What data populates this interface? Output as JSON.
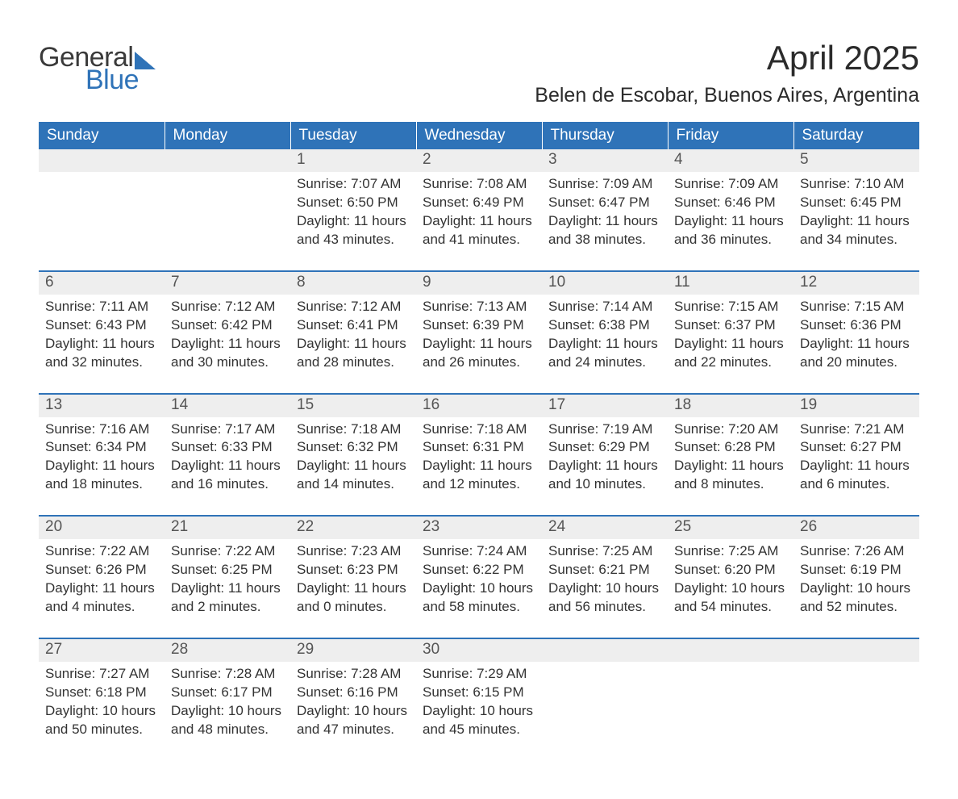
{
  "logo": {
    "word1": "General",
    "word2": "Blue",
    "word2_color": "#2f73b8"
  },
  "title": "April 2025",
  "location": "Belen de Escobar, Buenos Aires, Argentina",
  "colors": {
    "header_bg": "#2f73b8",
    "header_fg": "#ffffff",
    "daynum_bg": "#eeeeee",
    "daynum_fg": "#555555",
    "body_fg": "#333333",
    "week_border": "#2f73b8"
  },
  "day_headers": [
    "Sunday",
    "Monday",
    "Tuesday",
    "Wednesday",
    "Thursday",
    "Friday",
    "Saturday"
  ],
  "weeks": [
    [
      null,
      null,
      {
        "n": "1",
        "sr": "7:07 AM",
        "ss": "6:50 PM",
        "dl": "11 hours and 43 minutes."
      },
      {
        "n": "2",
        "sr": "7:08 AM",
        "ss": "6:49 PM",
        "dl": "11 hours and 41 minutes."
      },
      {
        "n": "3",
        "sr": "7:09 AM",
        "ss": "6:47 PM",
        "dl": "11 hours and 38 minutes."
      },
      {
        "n": "4",
        "sr": "7:09 AM",
        "ss": "6:46 PM",
        "dl": "11 hours and 36 minutes."
      },
      {
        "n": "5",
        "sr": "7:10 AM",
        "ss": "6:45 PM",
        "dl": "11 hours and 34 minutes."
      }
    ],
    [
      {
        "n": "6",
        "sr": "7:11 AM",
        "ss": "6:43 PM",
        "dl": "11 hours and 32 minutes."
      },
      {
        "n": "7",
        "sr": "7:12 AM",
        "ss": "6:42 PM",
        "dl": "11 hours and 30 minutes."
      },
      {
        "n": "8",
        "sr": "7:12 AM",
        "ss": "6:41 PM",
        "dl": "11 hours and 28 minutes."
      },
      {
        "n": "9",
        "sr": "7:13 AM",
        "ss": "6:39 PM",
        "dl": "11 hours and 26 minutes."
      },
      {
        "n": "10",
        "sr": "7:14 AM",
        "ss": "6:38 PM",
        "dl": "11 hours and 24 minutes."
      },
      {
        "n": "11",
        "sr": "7:15 AM",
        "ss": "6:37 PM",
        "dl": "11 hours and 22 minutes."
      },
      {
        "n": "12",
        "sr": "7:15 AM",
        "ss": "6:36 PM",
        "dl": "11 hours and 20 minutes."
      }
    ],
    [
      {
        "n": "13",
        "sr": "7:16 AM",
        "ss": "6:34 PM",
        "dl": "11 hours and 18 minutes."
      },
      {
        "n": "14",
        "sr": "7:17 AM",
        "ss": "6:33 PM",
        "dl": "11 hours and 16 minutes."
      },
      {
        "n": "15",
        "sr": "7:18 AM",
        "ss": "6:32 PM",
        "dl": "11 hours and 14 minutes."
      },
      {
        "n": "16",
        "sr": "7:18 AM",
        "ss": "6:31 PM",
        "dl": "11 hours and 12 minutes."
      },
      {
        "n": "17",
        "sr": "7:19 AM",
        "ss": "6:29 PM",
        "dl": "11 hours and 10 minutes."
      },
      {
        "n": "18",
        "sr": "7:20 AM",
        "ss": "6:28 PM",
        "dl": "11 hours and 8 minutes."
      },
      {
        "n": "19",
        "sr": "7:21 AM",
        "ss": "6:27 PM",
        "dl": "11 hours and 6 minutes."
      }
    ],
    [
      {
        "n": "20",
        "sr": "7:22 AM",
        "ss": "6:26 PM",
        "dl": "11 hours and 4 minutes."
      },
      {
        "n": "21",
        "sr": "7:22 AM",
        "ss": "6:25 PM",
        "dl": "11 hours and 2 minutes."
      },
      {
        "n": "22",
        "sr": "7:23 AM",
        "ss": "6:23 PM",
        "dl": "11 hours and 0 minutes."
      },
      {
        "n": "23",
        "sr": "7:24 AM",
        "ss": "6:22 PM",
        "dl": "10 hours and 58 minutes."
      },
      {
        "n": "24",
        "sr": "7:25 AM",
        "ss": "6:21 PM",
        "dl": "10 hours and 56 minutes."
      },
      {
        "n": "25",
        "sr": "7:25 AM",
        "ss": "6:20 PM",
        "dl": "10 hours and 54 minutes."
      },
      {
        "n": "26",
        "sr": "7:26 AM",
        "ss": "6:19 PM",
        "dl": "10 hours and 52 minutes."
      }
    ],
    [
      {
        "n": "27",
        "sr": "7:27 AM",
        "ss": "6:18 PM",
        "dl": "10 hours and 50 minutes."
      },
      {
        "n": "28",
        "sr": "7:28 AM",
        "ss": "6:17 PM",
        "dl": "10 hours and 48 minutes."
      },
      {
        "n": "29",
        "sr": "7:28 AM",
        "ss": "6:16 PM",
        "dl": "10 hours and 47 minutes."
      },
      {
        "n": "30",
        "sr": "7:29 AM",
        "ss": "6:15 PM",
        "dl": "10 hours and 45 minutes."
      },
      null,
      null,
      null
    ]
  ],
  "labels": {
    "sunrise": "Sunrise: ",
    "sunset": "Sunset: ",
    "daylight": "Daylight: "
  }
}
